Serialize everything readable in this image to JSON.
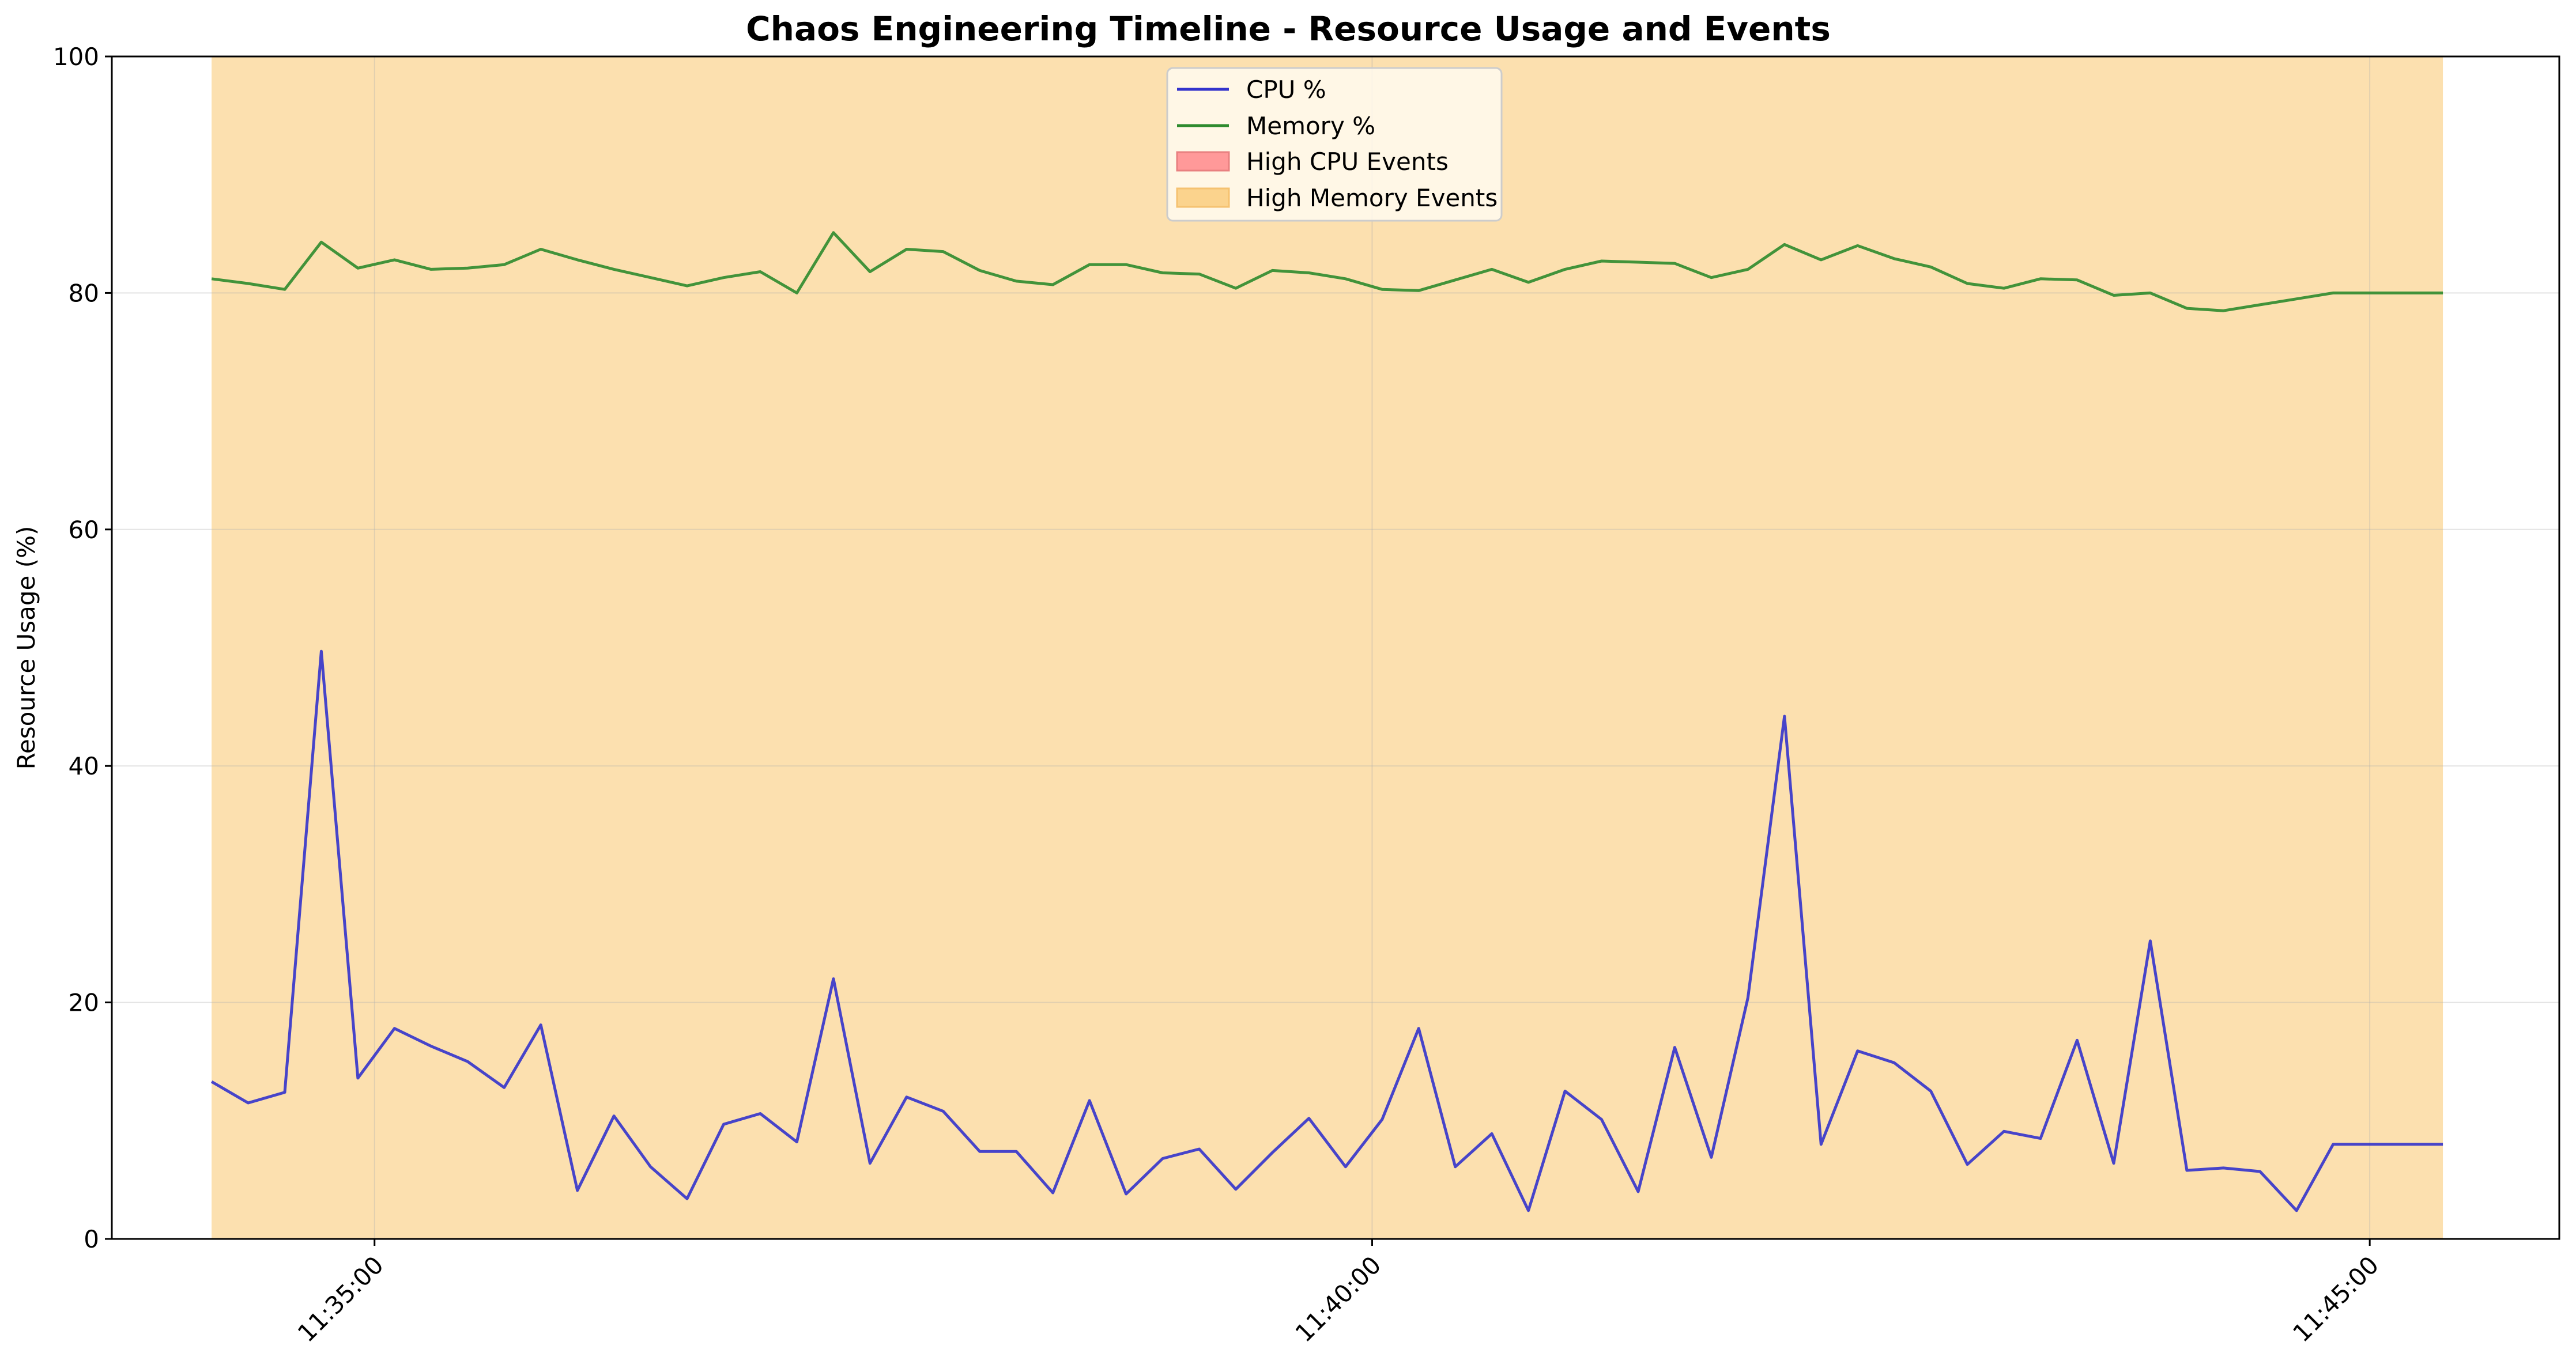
{
  "chart_data": {
    "type": "line",
    "title": "Chaos Engineering Timeline - Resource Usage and Events",
    "xlabel": "",
    "ylabel": "Resource Usage (%)",
    "ylim": [
      0,
      100
    ],
    "yticks": [
      0,
      20,
      40,
      60,
      80,
      100
    ],
    "xlim": [
      "11:33:41",
      "11:45:57"
    ],
    "xticks": [
      "11:35:00",
      "11:40:00",
      "11:45:00"
    ],
    "grid": true,
    "legend_position": "top-center",
    "x": [
      "11:34:11",
      "11:34:22",
      "11:34:33",
      "11:34:44",
      "11:34:55",
      "11:35:06",
      "11:35:17",
      "11:35:28",
      "11:35:39",
      "11:35:50",
      "11:36:01",
      "11:36:12",
      "11:36:23",
      "11:36:34",
      "11:36:45",
      "11:36:56",
      "11:37:07",
      "11:37:18",
      "11:37:29",
      "11:37:40",
      "11:37:51",
      "11:38:02",
      "11:38:13",
      "11:38:24",
      "11:38:35",
      "11:38:46",
      "11:38:57",
      "11:39:08",
      "11:39:19",
      "11:39:30",
      "11:39:41",
      "11:39:52",
      "11:40:03",
      "11:40:14",
      "11:40:25",
      "11:40:36",
      "11:40:47",
      "11:40:58",
      "11:41:09",
      "11:41:20",
      "11:41:31",
      "11:41:42",
      "11:41:53",
      "11:42:04",
      "11:42:15",
      "11:42:26",
      "11:42:37",
      "11:42:48",
      "11:42:59",
      "11:43:10",
      "11:43:21",
      "11:43:32",
      "11:43:43",
      "11:43:54",
      "11:44:05",
      "11:44:16",
      "11:44:27",
      "11:44:38",
      "11:44:49",
      "11:45:00",
      "11:45:11",
      "11:45:22"
    ],
    "series": [
      {
        "name": "CPU %",
        "color": "#3333cc",
        "values": [
          13.3,
          11.5,
          12.4,
          49.7,
          13.6,
          17.8,
          16.3,
          15.0,
          12.8,
          18.1,
          4.1,
          10.4,
          6.1,
          3.4,
          9.7,
          10.6,
          8.2,
          22.0,
          6.4,
          12.0,
          10.8,
          7.4,
          7.4,
          3.9,
          11.7,
          3.8,
          6.8,
          7.6,
          4.2,
          7.3,
          10.2,
          6.1,
          10.1,
          17.8,
          6.1,
          8.9,
          2.4,
          12.5,
          10.1,
          4.0,
          16.2,
          6.9,
          20.4,
          44.2,
          8.0,
          15.9,
          14.9,
          12.5,
          6.3,
          9.1,
          8.5,
          16.8,
          6.4,
          25.2,
          5.8,
          6.0,
          5.7,
          2.4,
          8.0,
          8.0,
          8.0,
          8.0
        ]
      },
      {
        "name": "Memory %",
        "color": "#2e8b2e",
        "values": [
          81.2,
          80.8,
          80.3,
          84.3,
          82.1,
          82.8,
          82.0,
          82.1,
          82.4,
          83.7,
          82.8,
          82.0,
          81.3,
          80.6,
          81.3,
          81.8,
          80.0,
          85.1,
          81.8,
          83.7,
          83.5,
          81.9,
          81.0,
          80.7,
          82.4,
          82.4,
          81.7,
          81.6,
          80.4,
          81.9,
          81.7,
          81.2,
          80.3,
          80.2,
          81.1,
          82.0,
          80.9,
          82.0,
          82.7,
          82.6,
          82.5,
          81.3,
          82.0,
          84.1,
          82.8,
          84.0,
          82.9,
          82.2,
          80.8,
          80.4,
          81.2,
          81.1,
          79.8,
          80.0,
          78.7,
          78.5,
          79.0,
          79.5,
          80.0,
          80.0,
          80.0,
          80.0
        ]
      }
    ],
    "event_series": [
      {
        "name": "High CPU Events",
        "color": "#ff9999",
        "spans": []
      },
      {
        "name": "High Memory Events",
        "color": "#fbd38d",
        "spans": [
          [
            "11:34:11",
            "11:45:22"
          ]
        ]
      }
    ]
  }
}
